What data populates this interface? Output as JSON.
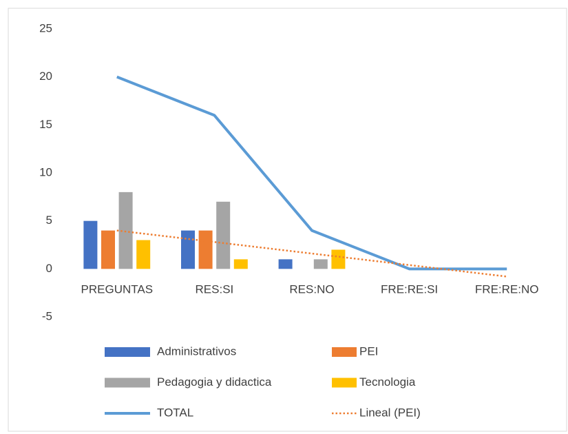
{
  "chart_data": {
    "type": "combo",
    "categories": [
      "PREGUNTAS",
      "RES:SI",
      "RES:NO",
      "FRE:RE:SI",
      "FRE:RE:NO"
    ],
    "series": [
      {
        "name": "Administrativos",
        "type": "bar",
        "color": "#4472c4",
        "values": [
          5,
          4,
          1,
          0,
          0
        ]
      },
      {
        "name": "PEI",
        "type": "bar",
        "color": "#ed7d31",
        "values": [
          4,
          4,
          0,
          0,
          0
        ]
      },
      {
        "name": "Pedagogia y didactica",
        "type": "bar",
        "color": "#a5a5a5",
        "values": [
          8,
          7,
          1,
          0,
          0
        ]
      },
      {
        "name": "Tecnologia",
        "type": "bar",
        "color": "#ffc000",
        "values": [
          3,
          1,
          2,
          0,
          0
        ]
      },
      {
        "name": "TOTAL",
        "type": "line",
        "color": "#5b9bd5",
        "values": [
          20,
          16,
          4,
          0,
          0
        ]
      },
      {
        "name": "Lineal (PEI)",
        "type": "line",
        "dash": "dotted",
        "color": "#ed7d31",
        "values": [
          4,
          2.8,
          1.6,
          0.4,
          -0.8
        ]
      }
    ],
    "ylim": [
      -5,
      25
    ],
    "yticks": [
      -5,
      0,
      5,
      10,
      15,
      20,
      25
    ],
    "grid": false,
    "legend": "bottom"
  }
}
